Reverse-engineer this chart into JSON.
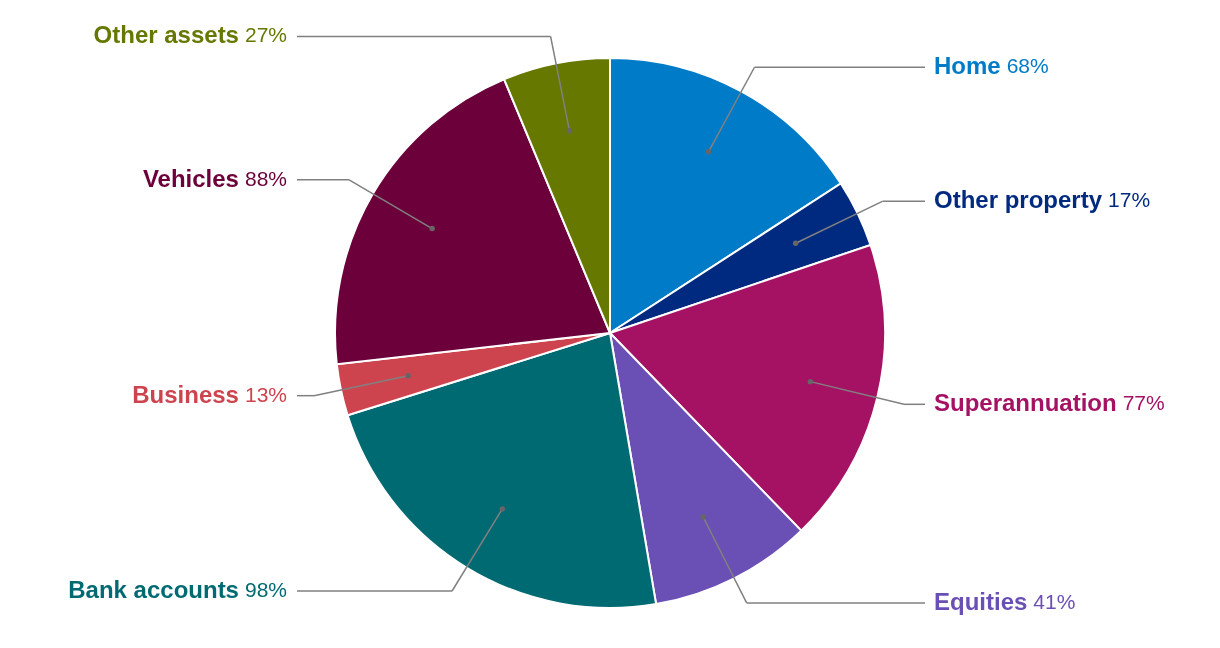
{
  "chart_data": {
    "type": "pie",
    "categories": [
      "Home",
      "Other property",
      "Superannuation",
      "Equities",
      "Bank accounts",
      "Business",
      "Vehicles",
      "Other assets"
    ],
    "values": [
      68,
      17,
      77,
      41,
      98,
      13,
      88,
      27
    ],
    "value_labels": [
      "68%",
      "17%",
      "77%",
      "41%",
      "98%",
      "13%",
      "88%",
      "27%"
    ],
    "colors": [
      "#007bc7",
      "#002a7f",
      "#a51264",
      "#6a4fb5",
      "#006a72",
      "#cd444f",
      "#6b003a",
      "#667800"
    ]
  }
}
